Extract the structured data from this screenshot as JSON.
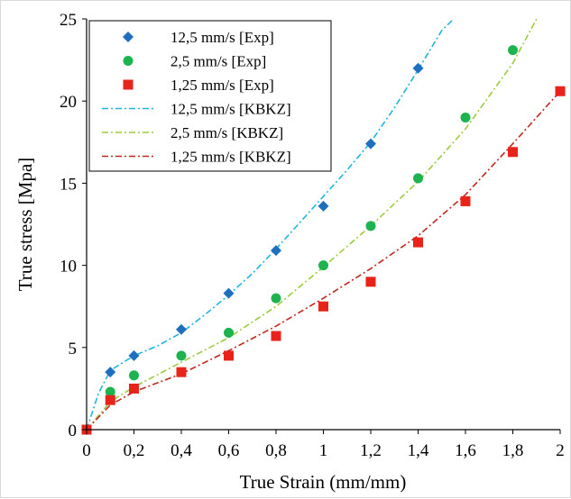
{
  "chart_data": {
    "type": "scatter",
    "title": "",
    "xlabel": "True Strain (mm/mm)",
    "ylabel": "True stress [Mpa]",
    "xlim": [
      0,
      2
    ],
    "ylim": [
      0,
      25
    ],
    "x_ticks": [
      "0",
      "0,2",
      "0,4",
      "0,6",
      "0,8",
      "1",
      "1,2",
      "1,4",
      "1,6",
      "1,8",
      "2"
    ],
    "y_ticks": [
      "0",
      "5",
      "10",
      "15",
      "20",
      "25"
    ],
    "grid": false,
    "legend_position": "top-left",
    "series": [
      {
        "name": "12,5 mm/s [Exp]",
        "kind": "markers",
        "marker": "diamond",
        "color": "#1f6fbf",
        "x": [
          0,
          0.1,
          0.2,
          0.4,
          0.6,
          0.8,
          1.0,
          1.2,
          1.4
        ],
        "y": [
          0,
          3.5,
          4.5,
          6.1,
          8.3,
          10.9,
          13.6,
          17.4,
          22.0
        ]
      },
      {
        "name": "2,5 mm/s [Exp]",
        "kind": "markers",
        "marker": "circle",
        "color": "#1db34f",
        "x": [
          0,
          0.1,
          0.2,
          0.4,
          0.6,
          0.8,
          1.0,
          1.2,
          1.4,
          1.6,
          1.8
        ],
        "y": [
          0,
          2.3,
          3.3,
          4.5,
          5.9,
          8.0,
          10.0,
          12.4,
          15.3,
          19.0,
          23.1
        ]
      },
      {
        "name": "1,25 mm/s [Exp]",
        "kind": "markers",
        "marker": "square",
        "color": "#e8231a",
        "x": [
          0,
          0.1,
          0.2,
          0.4,
          0.6,
          0.8,
          1.0,
          1.2,
          1.4,
          1.6,
          1.8,
          2.0
        ],
        "y": [
          0,
          1.8,
          2.5,
          3.5,
          4.5,
          5.7,
          7.5,
          9.0,
          11.4,
          13.9,
          16.9,
          20.6
        ]
      },
      {
        "name": "12,5 mm/s [KBKZ]",
        "kind": "line",
        "color": "#1eb6e0",
        "x": [
          0,
          0.05,
          0.1,
          0.2,
          0.3,
          0.4,
          0.5,
          0.6,
          0.7,
          0.8,
          0.9,
          1.0,
          1.1,
          1.2,
          1.3,
          1.4,
          1.5,
          1.55
        ],
        "y": [
          0,
          2.2,
          3.6,
          4.5,
          5.1,
          5.9,
          7.0,
          8.2,
          9.5,
          11.0,
          12.6,
          14.2,
          15.8,
          17.5,
          19.6,
          21.9,
          24.3,
          25.0
        ]
      },
      {
        "name": "2,5 mm/s [KBKZ]",
        "kind": "line",
        "color": "#9ccc3c",
        "x": [
          0,
          0.1,
          0.2,
          0.4,
          0.6,
          0.8,
          1.0,
          1.2,
          1.4,
          1.6,
          1.8,
          1.9
        ],
        "y": [
          0,
          1.7,
          2.6,
          4.1,
          5.6,
          7.5,
          9.9,
          12.4,
          15.1,
          18.3,
          22.3,
          25.0
        ]
      },
      {
        "name": "1,25 mm/s [KBKZ]",
        "kind": "line",
        "color": "#c0281e",
        "x": [
          0,
          0.1,
          0.2,
          0.4,
          0.6,
          0.8,
          1.0,
          1.2,
          1.4,
          1.6,
          1.8,
          2.0
        ],
        "y": [
          0,
          1.5,
          2.3,
          3.4,
          4.8,
          6.3,
          8.0,
          9.8,
          11.8,
          14.3,
          17.4,
          20.6
        ]
      }
    ]
  }
}
